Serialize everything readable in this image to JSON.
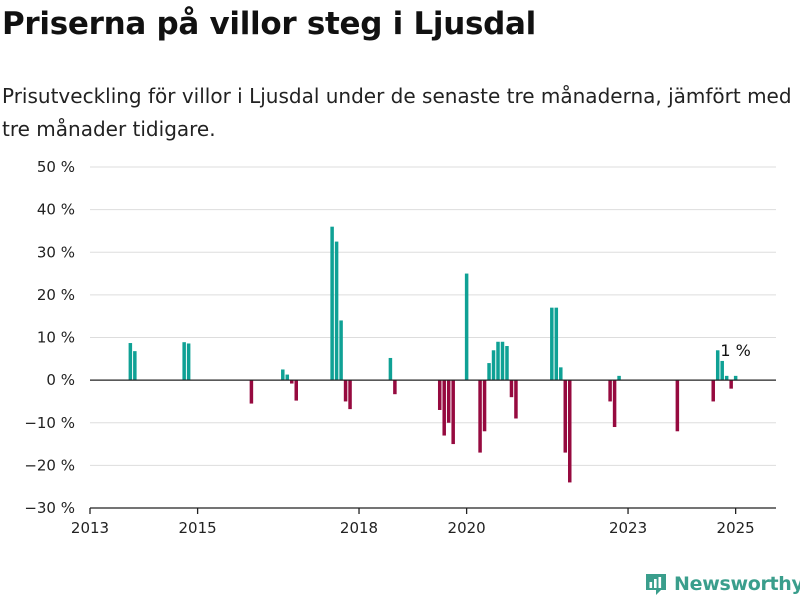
{
  "title": "Priserna på villor steg i Ljusdal",
  "subtitle": "Prisutveckling för villor i Ljusdal under de senaste tre månaderna, jämfört med tre månader tidigare.",
  "brand": {
    "name": "Newsworthy",
    "icon": "newsworthy-logo-icon",
    "color": "#3a9e8c"
  },
  "chart_data": {
    "type": "bar",
    "ylim": [
      -30,
      50
    ],
    "y_ticks": [
      -30,
      -20,
      -10,
      0,
      10,
      20,
      30,
      40,
      50
    ],
    "y_tick_labels": [
      "−30 %",
      "−20 %",
      "−10 %",
      "0 %",
      "10 %",
      "20 %",
      "30 %",
      "40 %",
      "50 %"
    ],
    "xlim": [
      "2013-01",
      "2025-10"
    ],
    "x_ticks": [
      "2013-01",
      "2015-01",
      "2018-01",
      "2020-01",
      "2023-01",
      "2025-01"
    ],
    "x_tick_labels": [
      "2013",
      "2015",
      "2018",
      "2020",
      "2023",
      "2025"
    ],
    "grid": true,
    "colors": {
      "positive": "#0fa195",
      "negative": "#960a3f",
      "grid": "#dddddd",
      "zero_line": "#222222"
    },
    "points": [
      {
        "x": "2013-10",
        "value": 8.7
      },
      {
        "x": "2013-11",
        "value": 6.8
      },
      {
        "x": "2014-10",
        "value": 8.9
      },
      {
        "x": "2014-11",
        "value": 8.6
      },
      {
        "x": "2016-01",
        "value": -5.5
      },
      {
        "x": "2016-08",
        "value": 2.5
      },
      {
        "x": "2016-09",
        "value": 1.3
      },
      {
        "x": "2016-10",
        "value": -0.8
      },
      {
        "x": "2016-11",
        "value": -4.8
      },
      {
        "x": "2017-07",
        "value": 36
      },
      {
        "x": "2017-08",
        "value": 32.5
      },
      {
        "x": "2017-09",
        "value": 14
      },
      {
        "x": "2017-10",
        "value": -5
      },
      {
        "x": "2017-11",
        "value": -6.8
      },
      {
        "x": "2018-08",
        "value": 5.2
      },
      {
        "x": "2018-09",
        "value": -3.3
      },
      {
        "x": "2019-07",
        "value": -7
      },
      {
        "x": "2019-08",
        "value": -13
      },
      {
        "x": "2019-09",
        "value": -10
      },
      {
        "x": "2019-10",
        "value": -15
      },
      {
        "x": "2020-01",
        "value": 25
      },
      {
        "x": "2020-04",
        "value": -17
      },
      {
        "x": "2020-05",
        "value": -12
      },
      {
        "x": "2020-06",
        "value": 4
      },
      {
        "x": "2020-07",
        "value": 7
      },
      {
        "x": "2020-08",
        "value": 9
      },
      {
        "x": "2020-09",
        "value": 9
      },
      {
        "x": "2020-10",
        "value": 8
      },
      {
        "x": "2020-11",
        "value": -4
      },
      {
        "x": "2020-12",
        "value": -9
      },
      {
        "x": "2021-08",
        "value": 17
      },
      {
        "x": "2021-09",
        "value": 17
      },
      {
        "x": "2021-10",
        "value": 3
      },
      {
        "x": "2021-11",
        "value": -17
      },
      {
        "x": "2021-12",
        "value": -24
      },
      {
        "x": "2022-09",
        "value": -5
      },
      {
        "x": "2022-10",
        "value": -11
      },
      {
        "x": "2022-11",
        "value": 1
      },
      {
        "x": "2023-12",
        "value": -12
      },
      {
        "x": "2024-08",
        "value": -5
      },
      {
        "x": "2024-09",
        "value": 7
      },
      {
        "x": "2024-10",
        "value": 4.5
      },
      {
        "x": "2024-11",
        "value": 1
      },
      {
        "x": "2024-12",
        "value": -2
      },
      {
        "x": "2025-01",
        "value": 1
      }
    ],
    "annotation": {
      "x": "2025-01",
      "label": "1 %"
    }
  }
}
